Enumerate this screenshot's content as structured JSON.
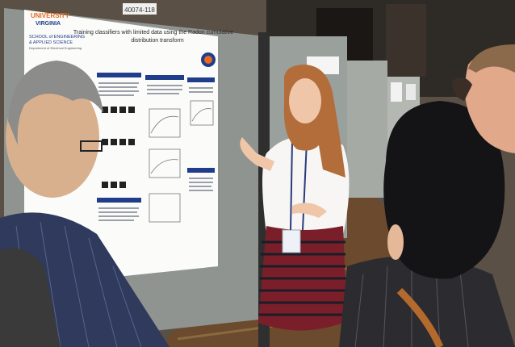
{
  "poster": {
    "university_line1": "UNIVERSITY",
    "university_line2": "VIRGINIA",
    "school_line1": "SCHOOL of ENGINEERING",
    "school_line2": "& APPLIED SCIENCE",
    "department": "Department of Electrical Engineering",
    "title_line1": "Training classifiers with limited data using the Radon cumulative",
    "title_line2": "distribution transform",
    "board_number": "40074-118"
  },
  "colors": {
    "poster_blue": "#1f3d8a",
    "uva_orange": "#e46b1f",
    "board_gray": "#8f9490",
    "carpet": "#6b4a2e"
  }
}
